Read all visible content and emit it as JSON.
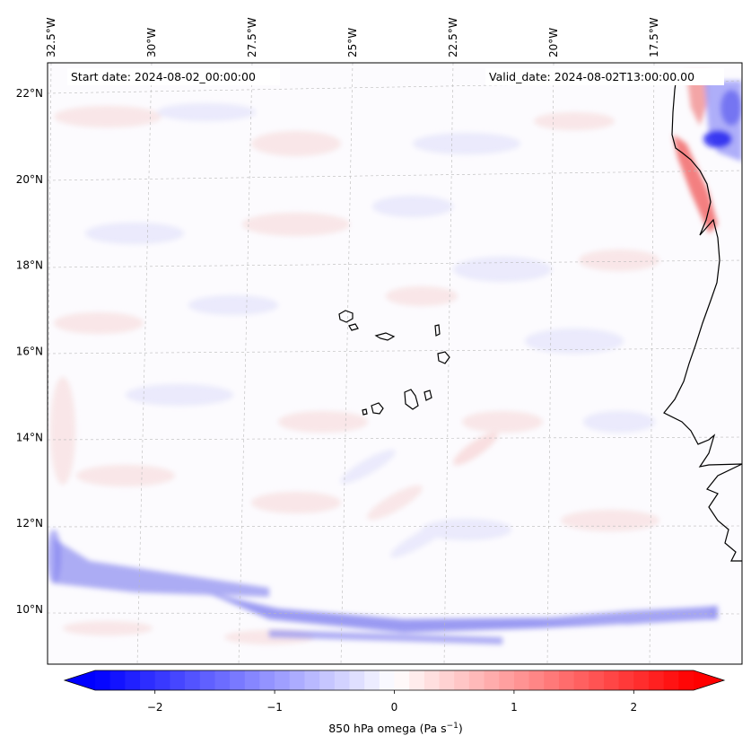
{
  "map": {
    "start_date_label": "Start date: 2024-08-02_00:00:00",
    "valid_date_label": "Valid_date: 2024-08-02T13:00:00.00",
    "lon_ticks": [
      {
        "value": -32.5,
        "label": "32.5°W"
      },
      {
        "value": -30,
        "label": "30°W"
      },
      {
        "value": -27.5,
        "label": "27.5°W"
      },
      {
        "value": -25,
        "label": "25°W"
      },
      {
        "value": -22.5,
        "label": "22.5°W"
      },
      {
        "value": -20,
        "label": "20°W"
      },
      {
        "value": -17.5,
        "label": "17.5°W"
      }
    ],
    "lat_ticks": [
      {
        "value": 22,
        "label": "22°N"
      },
      {
        "value": 20,
        "label": "20°N"
      },
      {
        "value": 18,
        "label": "18°N"
      },
      {
        "value": 16,
        "label": "16°N"
      },
      {
        "value": 14,
        "label": "14°N"
      },
      {
        "value": 12,
        "label": "12°N"
      },
      {
        "value": 10,
        "label": "10°N"
      }
    ],
    "lon_range": [
      -32.5,
      -15.0
    ],
    "lat_range": [
      8.8,
      22.8
    ],
    "field_colors": {
      "negative": "#0000ff",
      "zero": "#ffffff",
      "positive": "#ff0000"
    }
  },
  "colorbar": {
    "label_main": "850 hPa omega (Pa s",
    "label_exp": "−1",
    "label_close": ")",
    "range": [
      -2.5,
      2.5
    ],
    "ticks": [
      {
        "value": -2,
        "label": "−2"
      },
      {
        "value": -1,
        "label": "−1"
      },
      {
        "value": 0,
        "label": "0"
      },
      {
        "value": 1,
        "label": "1"
      },
      {
        "value": 2,
        "label": "2"
      }
    ],
    "cmap": "bwr"
  }
}
